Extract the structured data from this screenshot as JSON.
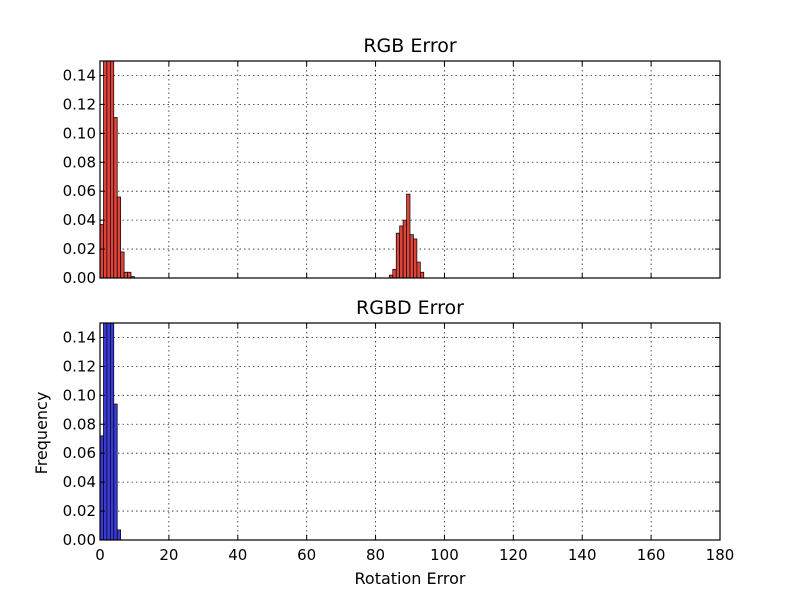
{
  "chart_data": [
    {
      "type": "bar",
      "title": "RGB Error",
      "xlabel": "",
      "ylabel": "",
      "xlim": [
        0,
        180
      ],
      "ylim": [
        0,
        0.15
      ],
      "bin_width": 1,
      "grid": true,
      "color": "#e0433a",
      "x_ticks": [
        0,
        20,
        40,
        60,
        80,
        100,
        120,
        140,
        160,
        180
      ],
      "x_tick_labels_visible": false,
      "y_ticks": [
        "0.00",
        "0.02",
        "0.04",
        "0.06",
        "0.08",
        "0.10",
        "0.12",
        "0.14"
      ],
      "bins": [
        0,
        1,
        2,
        3,
        4,
        5,
        6,
        7,
        8,
        9,
        84,
        85,
        86,
        87,
        88,
        89,
        90,
        91,
        92,
        93
      ],
      "values": [
        0.037,
        0.16,
        0.16,
        0.16,
        0.111,
        0.056,
        0.018,
        0.004,
        0.004,
        0.001,
        0.002,
        0.006,
        0.031,
        0.036,
        0.04,
        0.058,
        0.03,
        0.027,
        0.011,
        0.004
      ]
    },
    {
      "type": "bar",
      "title": "RGBD Error",
      "xlabel": "Rotation Error",
      "ylabel": "Frequency",
      "xlim": [
        0,
        180
      ],
      "ylim": [
        0,
        0.15
      ],
      "bin_width": 1,
      "grid": true,
      "color": "#3a3ad6",
      "x_ticks": [
        0,
        20,
        40,
        60,
        80,
        100,
        120,
        140,
        160,
        180
      ],
      "x_tick_labels_visible": true,
      "y_ticks": [
        "0.00",
        "0.02",
        "0.04",
        "0.06",
        "0.08",
        "0.10",
        "0.12",
        "0.14"
      ],
      "bins": [
        0,
        1,
        2,
        3,
        4,
        5
      ],
      "values": [
        0.072,
        0.16,
        0.16,
        0.16,
        0.094,
        0.007
      ]
    }
  ]
}
